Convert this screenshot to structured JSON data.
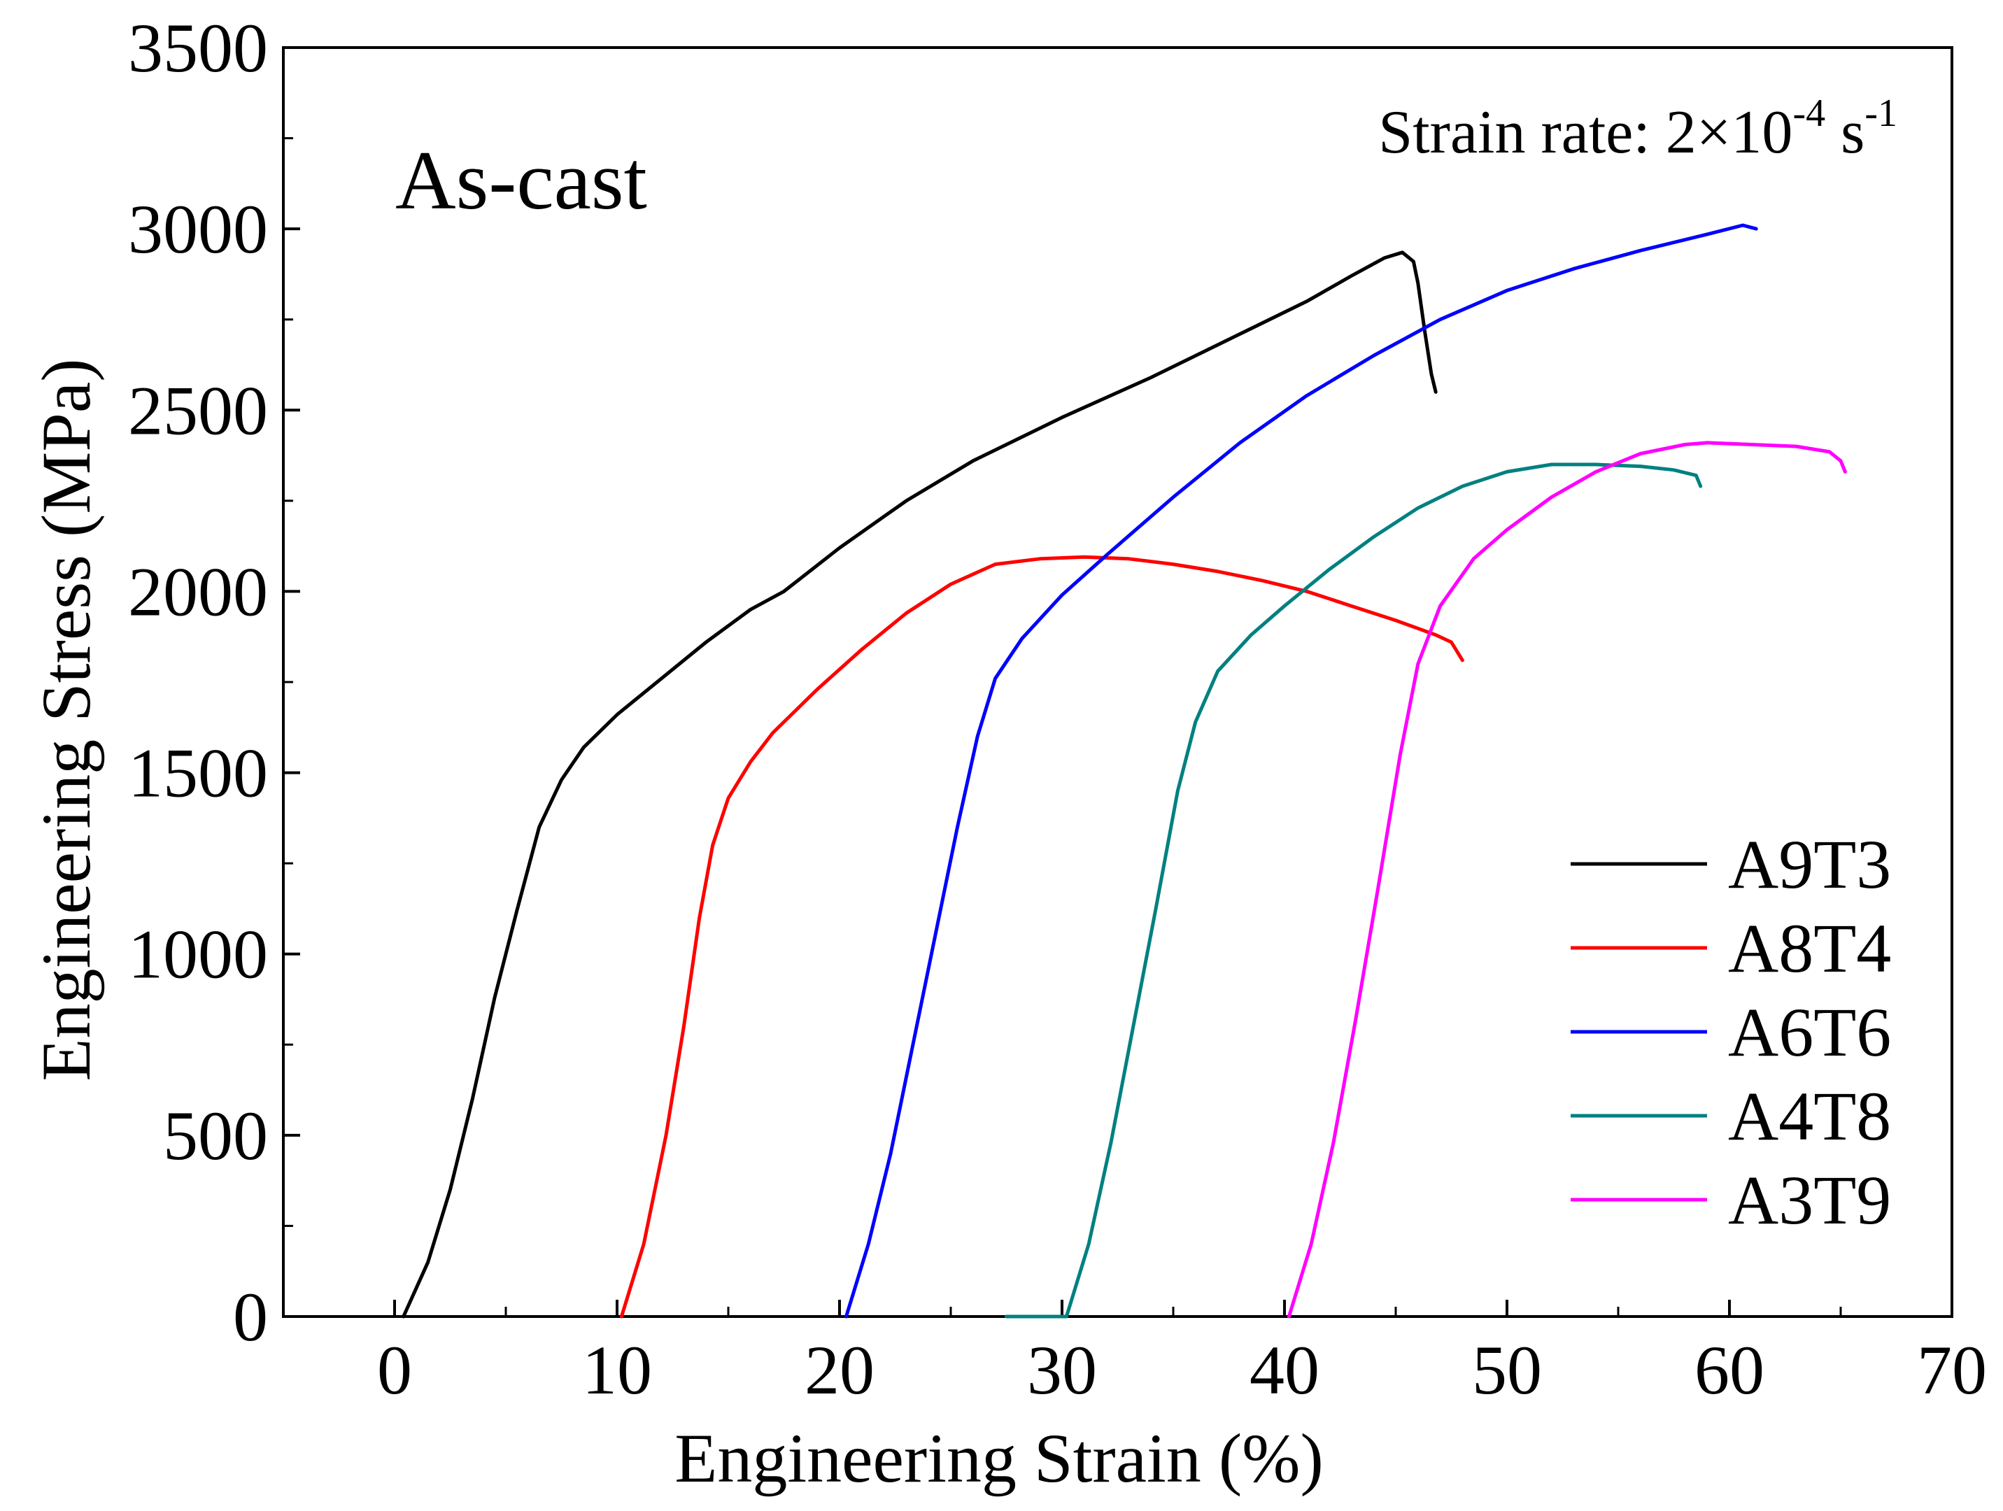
{
  "chart_data": {
    "type": "line",
    "panel_label": "As-cast",
    "annotation": {
      "prefix": "Strain rate: 2×10",
      "exp1": "-4",
      "mid": " s",
      "exp2": "-1"
    },
    "xlabel": "Engineering Strain (%)",
    "ylabel": "Engineering Stress (MPa)",
    "xlim": [
      -5,
      70
    ],
    "ylim": [
      0,
      3500
    ],
    "xticks": [
      0,
      10,
      20,
      30,
      40,
      50,
      60,
      70
    ],
    "yticks": [
      0,
      500,
      1000,
      1500,
      2000,
      2500,
      3000,
      3500
    ],
    "x_tick_labels": [
      "0",
      "10",
      "20",
      "30",
      "40",
      "50",
      "60",
      "70"
    ],
    "y_tick_labels": [
      "0",
      "500",
      "1000",
      "1500",
      "2000",
      "2500",
      "3000",
      "3500"
    ],
    "grid": false,
    "legend_position": "bottom-right",
    "series": [
      {
        "name": "A9T3",
        "color": "#000000",
        "points": [
          [
            0.4,
            0
          ],
          [
            1.5,
            150
          ],
          [
            2.5,
            350
          ],
          [
            3.5,
            600
          ],
          [
            4.5,
            880
          ],
          [
            5.5,
            1120
          ],
          [
            6.5,
            1350
          ],
          [
            7.5,
            1480
          ],
          [
            8.5,
            1570
          ],
          [
            10,
            1660
          ],
          [
            12,
            1760
          ],
          [
            14,
            1860
          ],
          [
            16,
            1950
          ],
          [
            17.5,
            2000
          ],
          [
            20,
            2120
          ],
          [
            23,
            2250
          ],
          [
            26,
            2360
          ],
          [
            30,
            2480
          ],
          [
            34,
            2590
          ],
          [
            38,
            2710
          ],
          [
            41,
            2800
          ],
          [
            43,
            2870
          ],
          [
            44.5,
            2920
          ],
          [
            45.3,
            2935
          ],
          [
            45.8,
            2910
          ],
          [
            46,
            2850
          ],
          [
            46.3,
            2720
          ],
          [
            46.6,
            2600
          ],
          [
            46.8,
            2550
          ]
        ]
      },
      {
        "name": "A8T4",
        "color": "#ff0000",
        "points": [
          [
            10.2,
            0
          ],
          [
            11.2,
            200
          ],
          [
            12.2,
            500
          ],
          [
            13,
            800
          ],
          [
            13.7,
            1100
          ],
          [
            14.3,
            1300
          ],
          [
            15,
            1430
          ],
          [
            16,
            1530
          ],
          [
            17,
            1610
          ],
          [
            19,
            1730
          ],
          [
            21,
            1840
          ],
          [
            23,
            1940
          ],
          [
            25,
            2020
          ],
          [
            27,
            2075
          ],
          [
            29,
            2090
          ],
          [
            31,
            2095
          ],
          [
            33,
            2090
          ],
          [
            35,
            2075
          ],
          [
            37,
            2055
          ],
          [
            39,
            2030
          ],
          [
            41,
            2000
          ],
          [
            43,
            1960
          ],
          [
            45,
            1920
          ],
          [
            46.8,
            1880
          ],
          [
            47.5,
            1860
          ],
          [
            48,
            1810
          ]
        ]
      },
      {
        "name": "A6T6",
        "color": "#0000ff",
        "points": [
          [
            20.3,
            0
          ],
          [
            21.3,
            200
          ],
          [
            22.3,
            450
          ],
          [
            23.3,
            750
          ],
          [
            24.3,
            1050
          ],
          [
            25.3,
            1350
          ],
          [
            26.2,
            1600
          ],
          [
            27,
            1760
          ],
          [
            28.2,
            1870
          ],
          [
            30,
            1990
          ],
          [
            32,
            2100
          ],
          [
            35,
            2260
          ],
          [
            38,
            2410
          ],
          [
            41,
            2540
          ],
          [
            44,
            2650
          ],
          [
            47,
            2750
          ],
          [
            50,
            2830
          ],
          [
            53,
            2890
          ],
          [
            56,
            2940
          ],
          [
            59,
            2985
          ],
          [
            60.6,
            3010
          ],
          [
            61.2,
            3000
          ]
        ]
      },
      {
        "name": "A4T8",
        "color": "#008080",
        "points": [
          [
            27.5,
            0
          ],
          [
            30.2,
            0
          ],
          [
            31.2,
            200
          ],
          [
            32.2,
            480
          ],
          [
            33.2,
            800
          ],
          [
            34.2,
            1120
          ],
          [
            35.2,
            1450
          ],
          [
            36,
            1640
          ],
          [
            37,
            1780
          ],
          [
            38.5,
            1880
          ],
          [
            40,
            1960
          ],
          [
            42,
            2060
          ],
          [
            44,
            2150
          ],
          [
            46,
            2230
          ],
          [
            48,
            2290
          ],
          [
            50,
            2330
          ],
          [
            52,
            2350
          ],
          [
            54,
            2350
          ],
          [
            56,
            2345
          ],
          [
            57.5,
            2335
          ],
          [
            58.5,
            2320
          ],
          [
            58.7,
            2290
          ]
        ]
      },
      {
        "name": "A3T9",
        "color": "#ff00ff",
        "points": [
          [
            40.2,
            0
          ],
          [
            41.2,
            200
          ],
          [
            42.2,
            480
          ],
          [
            43.2,
            820
          ],
          [
            44.2,
            1180
          ],
          [
            45.2,
            1550
          ],
          [
            46,
            1800
          ],
          [
            47,
            1960
          ],
          [
            48.5,
            2090
          ],
          [
            50,
            2170
          ],
          [
            52,
            2260
          ],
          [
            54,
            2330
          ],
          [
            56,
            2380
          ],
          [
            58,
            2405
          ],
          [
            59,
            2410
          ],
          [
            61,
            2405
          ],
          [
            63,
            2400
          ],
          [
            64.5,
            2385
          ],
          [
            65,
            2360
          ],
          [
            65.2,
            2330
          ]
        ]
      }
    ]
  }
}
